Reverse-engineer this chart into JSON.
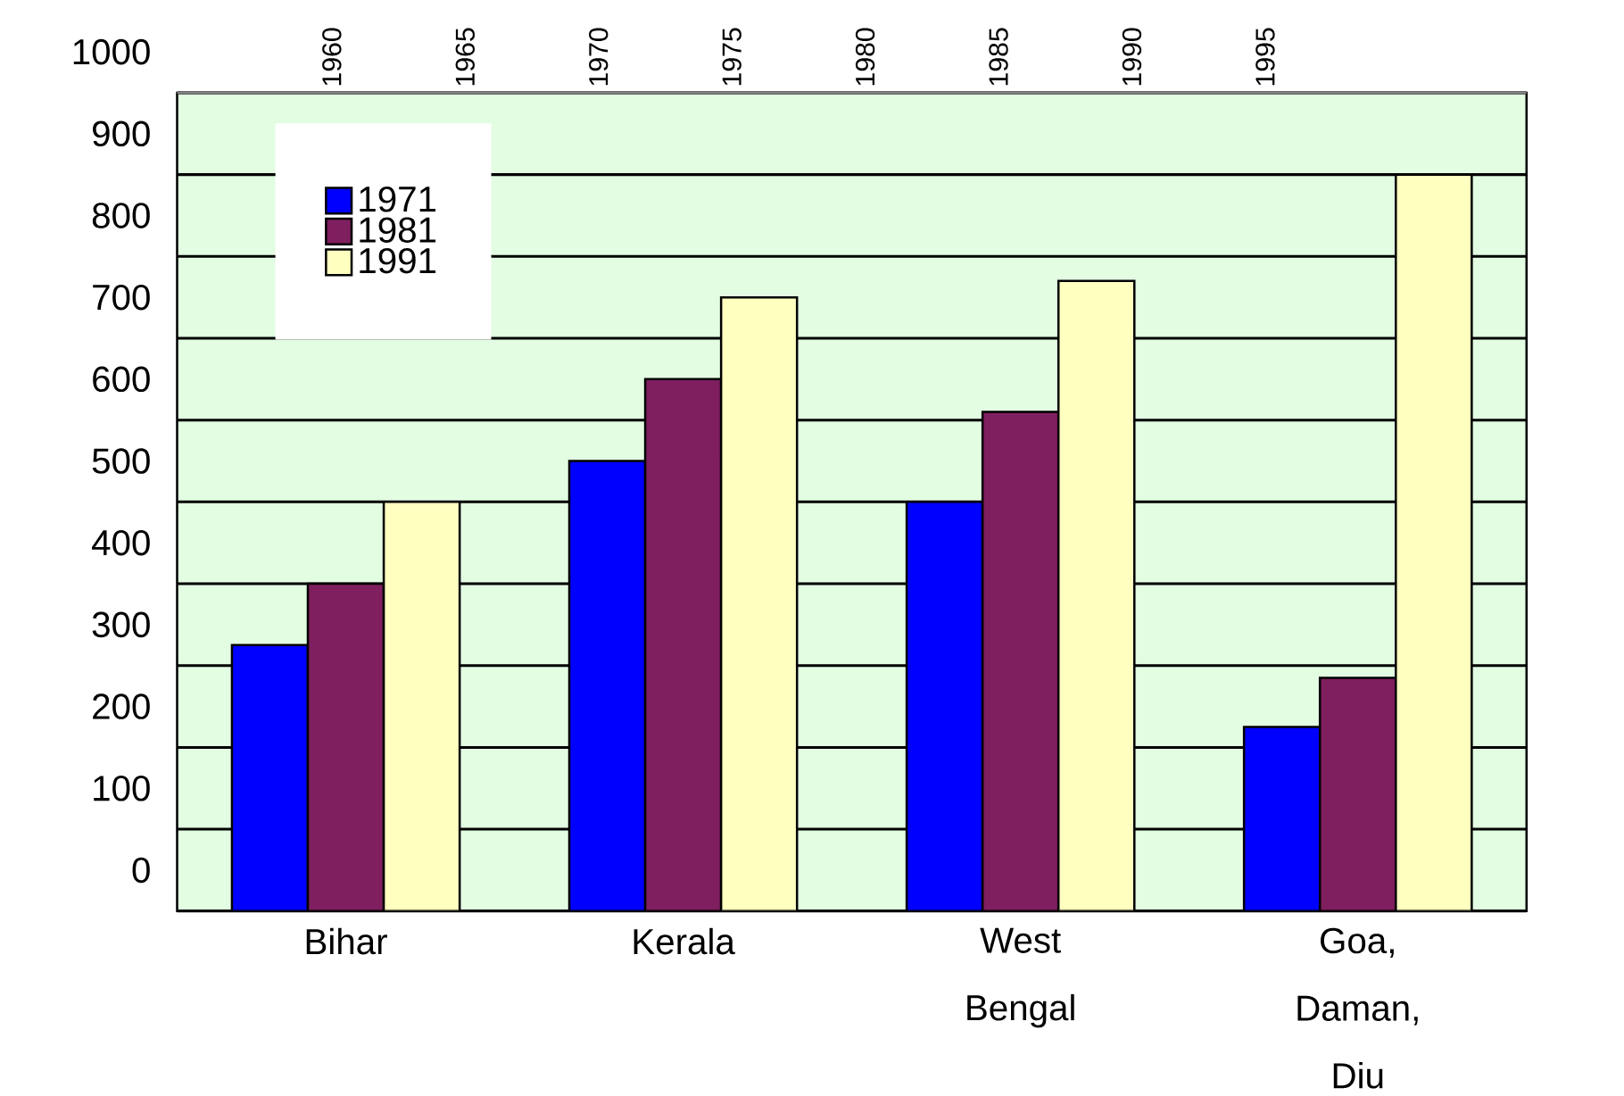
{
  "chart_data": {
    "type": "bar",
    "categories": [
      "Bihar",
      "Kerala",
      "West Bengal",
      "Goa, Daman, Diu"
    ],
    "series": [
      {
        "name": "1971",
        "color": "#0000ff",
        "values": [
          325,
          550,
          500,
          225
        ]
      },
      {
        "name": "1981",
        "color": "#7f1f5f",
        "values": [
          400,
          650,
          610,
          285
        ]
      },
      {
        "name": "1991",
        "color": "#ffffc0",
        "values": [
          500,
          750,
          770,
          900
        ]
      }
    ],
    "ylim": [
      0,
      1000
    ],
    "yticks": [
      0,
      100,
      200,
      300,
      400,
      500,
      600,
      700,
      800,
      900,
      1000
    ],
    "x2lim": [
      1954.2,
      2004.8
    ],
    "x2ticks": [
      1960,
      1965,
      1970,
      1975,
      1980,
      1985,
      1990,
      1995
    ],
    "grid": "y",
    "legend": "top left"
  }
}
